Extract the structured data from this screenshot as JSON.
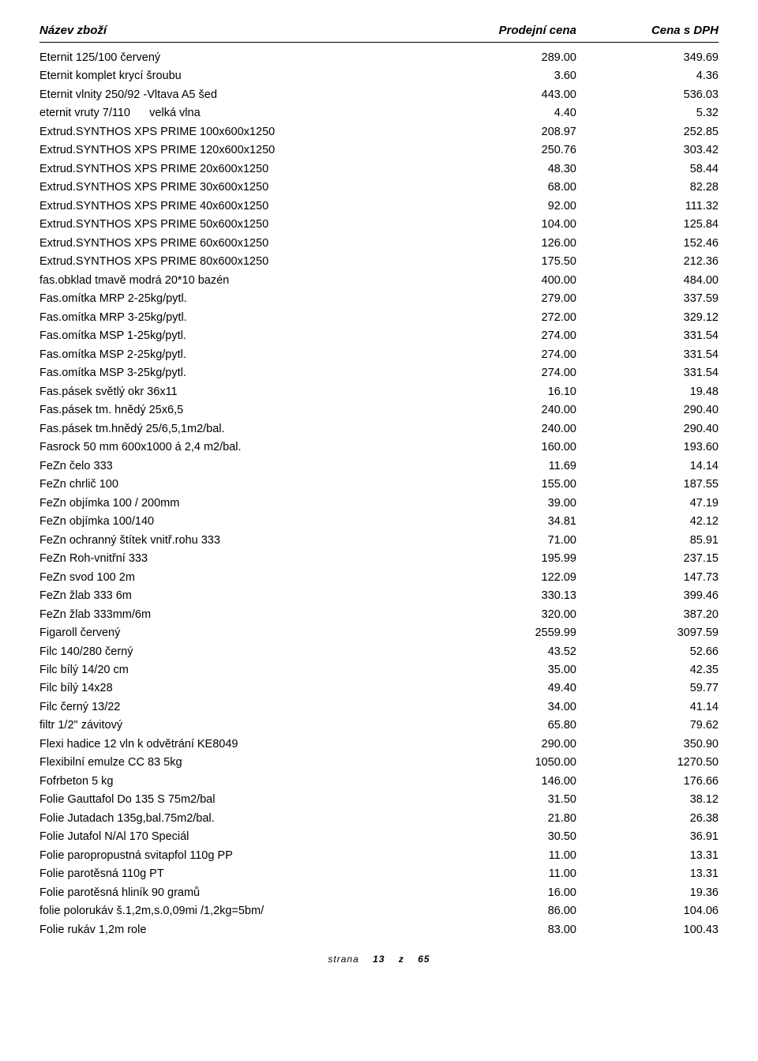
{
  "header": {
    "name": "Název zboží",
    "price": "Prodejní cena",
    "vat": "Cena s DPH"
  },
  "rows": [
    {
      "n": "Eternit 125/100 červený",
      "p": "289.00",
      "v": "349.69"
    },
    {
      "n": "Eternit komplet krycí šroubu",
      "p": "3.60",
      "v": "4.36"
    },
    {
      "n": "Eternit vlnity 250/92 -Vltava A5 šed",
      "p": "443.00",
      "v": "536.03"
    },
    {
      "n": "eternit vruty 7/110      velká vlna",
      "p": "4.40",
      "v": "5.32"
    },
    {
      "n": "Extrud.SYNTHOS XPS PRIME 100x600x1250",
      "p": "208.97",
      "v": "252.85"
    },
    {
      "n": "Extrud.SYNTHOS XPS PRIME 120x600x1250",
      "p": "250.76",
      "v": "303.42"
    },
    {
      "n": "Extrud.SYNTHOS XPS PRIME 20x600x1250",
      "p": "48.30",
      "v": "58.44"
    },
    {
      "n": "Extrud.SYNTHOS XPS PRIME 30x600x1250",
      "p": "68.00",
      "v": "82.28"
    },
    {
      "n": "Extrud.SYNTHOS XPS PRIME 40x600x1250",
      "p": "92.00",
      "v": "111.32"
    },
    {
      "n": "Extrud.SYNTHOS XPS PRIME 50x600x1250",
      "p": "104.00",
      "v": "125.84"
    },
    {
      "n": "Extrud.SYNTHOS XPS PRIME 60x600x1250",
      "p": "126.00",
      "v": "152.46"
    },
    {
      "n": "Extrud.SYNTHOS XPS PRIME 80x600x1250",
      "p": "175.50",
      "v": "212.36"
    },
    {
      "n": "fas.obklad tmavě modrá 20*10 bazén",
      "p": "400.00",
      "v": "484.00"
    },
    {
      "n": "Fas.omítka MRP 2-25kg/pytl.",
      "p": "279.00",
      "v": "337.59"
    },
    {
      "n": "Fas.omítka MRP 3-25kg/pytl.",
      "p": "272.00",
      "v": "329.12"
    },
    {
      "n": "Fas.omítka MSP 1-25kg/pytl.",
      "p": "274.00",
      "v": "331.54"
    },
    {
      "n": "Fas.omítka MSP 2-25kg/pytl.",
      "p": "274.00",
      "v": "331.54"
    },
    {
      "n": "Fas.omítka MSP 3-25kg/pytl.",
      "p": "274.00",
      "v": "331.54"
    },
    {
      "n": "Fas.pásek světlý okr 36x11",
      "p": "16.10",
      "v": "19.48"
    },
    {
      "n": "Fas.pásek tm. hnědý 25x6,5",
      "p": "240.00",
      "v": "290.40"
    },
    {
      "n": "Fas.pásek tm.hnědý 25/6,5,1m2/bal.",
      "p": "240.00",
      "v": "290.40"
    },
    {
      "n": "Fasrock 50 mm 600x1000 á 2,4 m2/bal.",
      "p": "160.00",
      "v": "193.60"
    },
    {
      "n": "FeZn čelo 333",
      "p": "11.69",
      "v": "14.14"
    },
    {
      "n": "FeZn chrlič 100",
      "p": "155.00",
      "v": "187.55"
    },
    {
      "n": "FeZn objímka 100 / 200mm",
      "p": "39.00",
      "v": "47.19"
    },
    {
      "n": "FeZn objímka 100/140",
      "p": "34.81",
      "v": "42.12"
    },
    {
      "n": "FeZn ochranný štítek vnitř.rohu 333",
      "p": "71.00",
      "v": "85.91"
    },
    {
      "n": "FeZn Roh-vnitřní 333",
      "p": "195.99",
      "v": "237.15"
    },
    {
      "n": "FeZn svod 100 2m",
      "p": "122.09",
      "v": "147.73"
    },
    {
      "n": "FeZn žlab 333 6m",
      "p": "330.13",
      "v": "399.46"
    },
    {
      "n": "FeZn žlab 333mm/6m",
      "p": "320.00",
      "v": "387.20"
    },
    {
      "n": "Figaroll červený",
      "p": "2559.99",
      "v": "3097.59"
    },
    {
      "n": "Filc 140/280 černý",
      "p": "43.52",
      "v": "52.66"
    },
    {
      "n": "Filc bílý 14/20 cm",
      "p": "35.00",
      "v": "42.35"
    },
    {
      "n": "Filc bílý 14x28",
      "p": "49.40",
      "v": "59.77"
    },
    {
      "n": "Filc černý 13/22",
      "p": "34.00",
      "v": "41.14"
    },
    {
      "n": "filtr 1/2\" závitový",
      "p": "65.80",
      "v": "79.62"
    },
    {
      "n": "Flexi hadice 12 vln k odvětrání KE8049",
      "p": "290.00",
      "v": "350.90"
    },
    {
      "n": "Flexibilní emulze CC 83 5kg",
      "p": "1050.00",
      "v": "1270.50"
    },
    {
      "n": "Fofrbeton 5 kg",
      "p": "146.00",
      "v": "176.66"
    },
    {
      "n": "Folie Gauttafol Do 135 S 75m2/bal",
      "p": "31.50",
      "v": "38.12"
    },
    {
      "n": "Folie Jutadach 135g,bal.75m2/bal.",
      "p": "21.80",
      "v": "26.38"
    },
    {
      "n": "Folie Jutafol N/Al 170 Speciál",
      "p": "30.50",
      "v": "36.91"
    },
    {
      "n": "Folie paropropustná svitapfol 110g PP",
      "p": "11.00",
      "v": "13.31"
    },
    {
      "n": "Folie parotěsná 110g PT",
      "p": "11.00",
      "v": "13.31"
    },
    {
      "n": "Folie parotěsná hliník 90 gramů",
      "p": "16.00",
      "v": "19.36"
    },
    {
      "n": "folie polorukáv š.1,2m,s.0,09mi /1,2kg=5bm/",
      "p": "86.00",
      "v": "104.06"
    },
    {
      "n": "Folie rukáv 1,2m role",
      "p": "83.00",
      "v": "100.43"
    }
  ],
  "footer": {
    "label": "strana",
    "page": "13",
    "sep": "z",
    "total": "65"
  }
}
